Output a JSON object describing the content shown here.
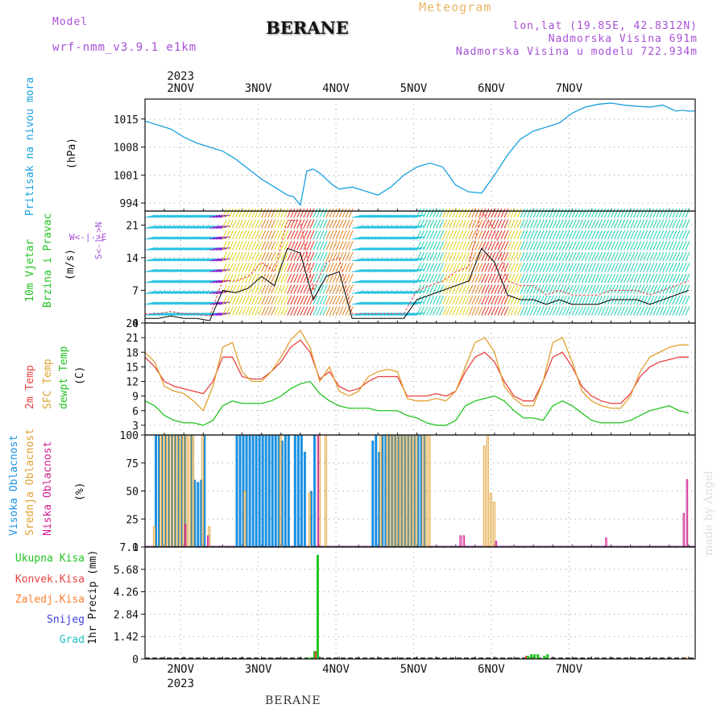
{
  "header": {
    "model_label": "Model",
    "model_name": "wrf-nmm_v3.9.1 e1km",
    "title": "BERANE",
    "meteogram": "Meteogram",
    "coords": "lon,lat (19.85E, 42.8312N)",
    "elevation": "Nadmorska Visina 691m",
    "model_elevation": "Nadmorska Visina u modelu 722.934m"
  },
  "footer": {
    "station": "BERANE",
    "signature": "made by Angel"
  },
  "time_axis": {
    "year": "2023",
    "days": [
      "2NOV",
      "3NOV",
      "4NOV",
      "5NOV",
      "6NOV",
      "7NOV"
    ]
  },
  "colors": {
    "pressure": "#1aa0e0",
    "temp2m": "#e84040",
    "sfc": "#e0a030",
    "dewpt": "#22c422",
    "wind_speed": "#000000",
    "gust": "#e84040",
    "high_cloud": "#1a90e0",
    "mid_cloud": "#e0a030",
    "low_cloud": "#d02090",
    "precip_total": "#22c422",
    "precip_conv": "#e84040",
    "precip_frz": "#ff8030",
    "snow": "#4040e0",
    "grad": "#20c0c0",
    "legend_purple": "#a64fd6"
  },
  "panels": {
    "pressure": {
      "labels": [
        "Pritisak na nivou mora",
        "(hPa)"
      ]
    },
    "wind": {
      "labels": [
        "10m Vjetar",
        "Brzina i Pravac",
        "(m/s)"
      ],
      "compass": [
        "N",
        "S",
        "W",
        "E"
      ],
      "compass_text": "S<-|->N",
      "compass_text2": "W<-|->E"
    },
    "temp": {
      "labels": [
        "2m Temp",
        "SFC Temp",
        "dewpt Temp",
        "(C)"
      ]
    },
    "cloud": {
      "labels": [
        "Visoka Oblacnost",
        "Srednja Oblacnost",
        "Niska Oblacnost",
        "(%)"
      ]
    },
    "precip": {
      "labels": [
        "Ukupna Kisa",
        "Konvek.Kisa",
        "Zaledj.Kisa",
        "Snijeg",
        "Grad"
      ],
      "axis_label": "1hr Precip (mm)"
    }
  },
  "chart_data": [
    {
      "type": "line",
      "title": "",
      "ylabel": "(hPa)",
      "ylim": [
        992,
        1020
      ],
      "yticks": [
        994,
        1001,
        1008,
        1015
      ],
      "x_hours": [
        0,
        4,
        8,
        12,
        16,
        20,
        24,
        28,
        32,
        36,
        40,
        44,
        46,
        48,
        50,
        52,
        54,
        56,
        58,
        60,
        64,
        68,
        72,
        76,
        80,
        84,
        88,
        92,
        96,
        100,
        104,
        108,
        112,
        116,
        120,
        124,
        128,
        132,
        136,
        140,
        144,
        148,
        152,
        156,
        160,
        164,
        166,
        168,
        170
      ],
      "series": [
        {
          "name": "Pritisak na nivou mora",
          "values": [
            1014.5,
            1013.5,
            1012.5,
            1010.5,
            1009,
            1008,
            1007,
            1005,
            1002.5,
            1000,
            998,
            996,
            995.5,
            993.5,
            1002,
            1002.5,
            1001.5,
            1000,
            998.5,
            997.5,
            998,
            997,
            996,
            998,
            1001,
            1003,
            1004,
            1003,
            998.5,
            996.8,
            996.5,
            1001,
            1006,
            1010,
            1012,
            1013,
            1014,
            1016.5,
            1018,
            1018.7,
            1019,
            1018.5,
            1018.2,
            1018,
            1018.5,
            1017,
            1017.2,
            1017,
            1017
          ]
        }
      ]
    },
    {
      "type": "line",
      "title": "",
      "ylabel": "(m/s)",
      "ylim": [
        0,
        24
      ],
      "yticks": [
        0,
        7,
        14,
        21
      ],
      "x_hours": [
        0,
        4,
        8,
        12,
        16,
        20,
        24,
        28,
        32,
        36,
        40,
        44,
        48,
        52,
        56,
        60,
        64,
        68,
        72,
        76,
        80,
        84,
        88,
        92,
        96,
        100,
        104,
        108,
        112,
        116,
        120,
        124,
        128,
        132,
        136,
        140,
        144,
        148,
        152,
        156,
        160,
        164,
        168
      ],
      "series": [
        {
          "name": "wind speed",
          "values": [
            1,
            1,
            1.5,
            1,
            1,
            0.5,
            7,
            6.5,
            7.5,
            10,
            8,
            16,
            15,
            5,
            10,
            11,
            1,
            1,
            1,
            1,
            1,
            5,
            6,
            7,
            8,
            9,
            16,
            13,
            6,
            5,
            5,
            4,
            5,
            4,
            4,
            4,
            5,
            5,
            5,
            4,
            5,
            6,
            7
          ]
        },
        {
          "name": "gust",
          "values": [
            2,
            2,
            2.5,
            2,
            2,
            1.5,
            9,
            9,
            10,
            13,
            11,
            22,
            22,
            7,
            13,
            14,
            2,
            2,
            2,
            2,
            2,
            7,
            8,
            9,
            11,
            12,
            24,
            20,
            9,
            8,
            8,
            6,
            7,
            6,
            6,
            6,
            7,
            7,
            7,
            6,
            7,
            8,
            9
          ]
        }
      ]
    },
    {
      "type": "line",
      "title": "",
      "ylabel": "(C)",
      "ylim": [
        1,
        24
      ],
      "yticks": [
        3,
        6,
        9,
        12,
        15,
        18,
        21,
        24
      ],
      "x_hours": [
        0,
        3,
        6,
        9,
        12,
        15,
        18,
        21,
        24,
        27,
        30,
        33,
        36,
        39,
        42,
        45,
        48,
        51,
        54,
        57,
        60,
        63,
        66,
        69,
        72,
        75,
        78,
        81,
        84,
        87,
        90,
        93,
        96,
        99,
        102,
        105,
        108,
        111,
        114,
        117,
        120,
        123,
        126,
        129,
        132,
        135,
        138,
        141,
        144,
        147,
        150,
        153,
        156,
        159,
        162,
        165,
        168
      ],
      "series": [
        {
          "name": "2m Temp",
          "values": [
            17,
            15,
            12,
            11,
            10.5,
            10,
            9.5,
            12,
            17,
            17,
            13,
            12.5,
            12.5,
            14,
            16,
            19,
            20.5,
            18,
            12.5,
            14,
            11,
            10,
            10.5,
            12,
            13,
            13,
            13,
            9,
            9,
            9,
            9.5,
            9,
            10,
            14,
            17,
            18,
            16,
            12,
            9,
            8,
            8,
            12,
            17,
            18,
            15,
            11,
            9,
            8,
            7.5,
            7.5,
            9.5,
            13,
            15,
            16,
            16.5,
            17,
            17
          ]
        },
        {
          "name": "SFC Temp",
          "values": [
            18,
            16,
            11,
            10,
            9.5,
            8,
            6,
            11,
            19,
            20,
            14,
            12,
            12,
            14,
            17,
            20.5,
            22.5,
            19,
            12,
            15,
            10,
            9,
            10,
            13,
            14,
            14.5,
            14,
            8.5,
            8,
            8,
            8.5,
            8,
            10,
            15,
            20,
            21,
            18,
            11,
            8.5,
            7,
            7,
            12,
            20,
            21,
            16,
            10,
            8,
            7,
            6.5,
            6.5,
            9,
            14,
            17,
            18,
            19,
            19.5,
            19.5
          ]
        },
        {
          "name": "dewpt Temp",
          "values": [
            8,
            7,
            5,
            4,
            3.5,
            3.5,
            3,
            4,
            7,
            8,
            7.5,
            7.5,
            7.5,
            8,
            9,
            10.5,
            11.5,
            12,
            9.5,
            8,
            7,
            6.5,
            6.5,
            6.5,
            6,
            6,
            6,
            5,
            4.5,
            3.5,
            3,
            3,
            4,
            7,
            8,
            8.5,
            9,
            8,
            6,
            4.5,
            4.5,
            4,
            7,
            8,
            7,
            5.5,
            4,
            3.5,
            3.5,
            3.5,
            4,
            5,
            6,
            6.5,
            7,
            6,
            5.5
          ]
        }
      ]
    },
    {
      "type": "bar",
      "title": "",
      "ylabel": "(%)",
      "ylim": [
        0,
        100
      ],
      "yticks": [
        0,
        25,
        50,
        75,
        100
      ],
      "series": [
        {
          "name": "Visoka Oblacnost",
          "x_hours": [
            3,
            4,
            5,
            6,
            7,
            8,
            9,
            10,
            11,
            12,
            14,
            15,
            16,
            17,
            18,
            28,
            29,
            30,
            31,
            32,
            33,
            34,
            35,
            36,
            37,
            38,
            39,
            40,
            41,
            42,
            43,
            44,
            46,
            47,
            48,
            49,
            51,
            52,
            70,
            71,
            72,
            73,
            74,
            75,
            76,
            77,
            78,
            79,
            80,
            81,
            82,
            83,
            84,
            85,
            86
          ],
          "values": [
            100,
            100,
            100,
            100,
            100,
            100,
            100,
            100,
            100,
            100,
            100,
            60,
            58,
            60,
            100,
            100,
            100,
            100,
            100,
            100,
            100,
            100,
            100,
            100,
            100,
            100,
            100,
            100,
            100,
            95,
            100,
            100,
            100,
            100,
            100,
            85,
            50,
            100,
            95,
            100,
            85,
            100,
            100,
            100,
            100,
            100,
            100,
            100,
            100,
            100,
            100,
            100,
            100,
            100,
            100
          ]
        },
        {
          "name": "Srednja Oblacnost",
          "x_hours": [
            2,
            4,
            5,
            6,
            7,
            8,
            9,
            10,
            11,
            12,
            13,
            14,
            17,
            19,
            30,
            41,
            50,
            53,
            55,
            72,
            74,
            75,
            76,
            77,
            78,
            79,
            80,
            81,
            82,
            83,
            85,
            86,
            87,
            104,
            105,
            106,
            107
          ],
          "values": [
            18,
            100,
            100,
            100,
            100,
            100,
            100,
            100,
            100,
            100,
            100,
            100,
            100,
            18,
            50,
            100,
            48,
            100,
            100,
            100,
            100,
            100,
            100,
            100,
            100,
            100,
            100,
            100,
            100,
            100,
            100,
            100,
            100,
            90,
            100,
            48,
            40
          ]
        },
        {
          "name": "Niska Oblacnost",
          "x_hours": [
            12,
            19,
            53,
            97,
            98,
            108,
            142,
            166,
            167
          ],
          "values": [
            20,
            10,
            100,
            10,
            10,
            5,
            8,
            30,
            60
          ]
        }
      ]
    },
    {
      "type": "bar",
      "title": "",
      "ylabel": "1hr Precip (mm)",
      "ylim": [
        0,
        7.1
      ],
      "yticks": [
        0,
        1.42,
        2.84,
        4.26,
        5.68,
        7.1
      ],
      "series": [
        {
          "name": "Ukupna Kisa",
          "x_hours": [
            50,
            51,
            52,
            53,
            54,
            118,
            119,
            120,
            121,
            122,
            123,
            124
          ],
          "values": [
            0.1,
            0.1,
            0.5,
            6.6,
            0.05,
            0.2,
            0.3,
            0.3,
            0.3,
            0.05,
            0.2,
            0.3
          ]
        },
        {
          "name": "Konvek.Kisa",
          "x_hours": [
            53,
            118,
            119,
            120
          ],
          "values": [
            0.5,
            0.2,
            0.05,
            0.05
          ]
        },
        {
          "name": "Zaledj.Kisa",
          "x_hours": [
            167
          ],
          "values": [
            0.1
          ]
        },
        {
          "name": "Snijeg",
          "x_hours": [],
          "values": []
        },
        {
          "name": "Grad",
          "x_hours": [],
          "values": []
        }
      ]
    }
  ]
}
